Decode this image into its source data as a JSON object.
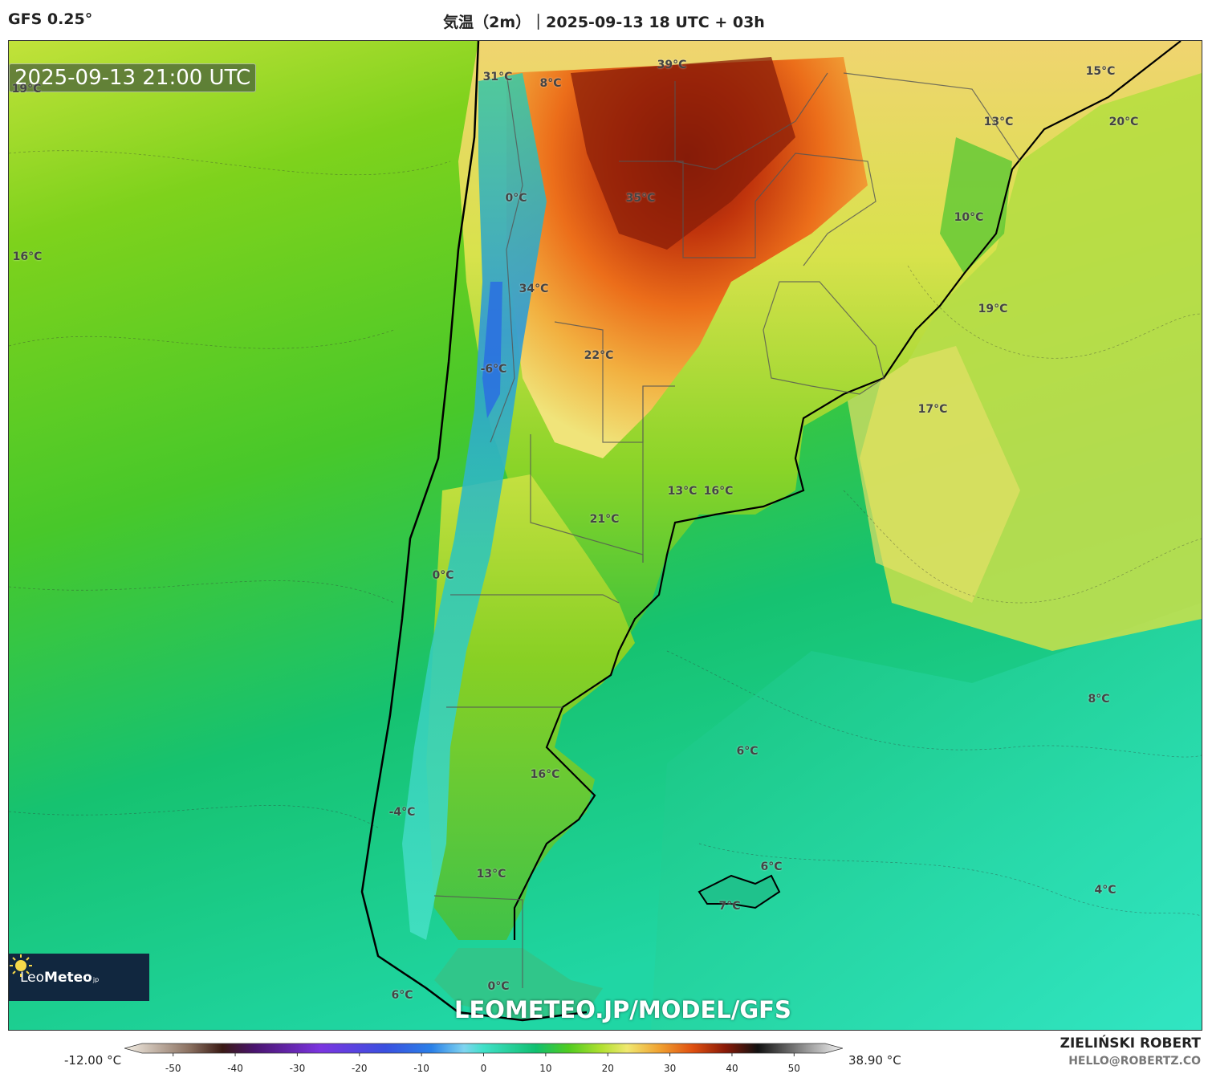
{
  "header": {
    "model": "GFS 0.25°",
    "title": "気温（2m）｜2025-09-13 18 UTC + 03h"
  },
  "map": {
    "timestamp": "2025-09-13 21:00 UTC",
    "watermark_url": "LEOMETEO.JP/MODEL/GFS",
    "logo": {
      "leo": "Leo",
      "meteo": "Meteo",
      "suffix": "jp",
      "icon": "sun-icon"
    },
    "temp_labels": [
      {
        "text": "39°C"
      },
      {
        "text": "31°C"
      },
      {
        "text": "8°C"
      },
      {
        "text": "19°C"
      },
      {
        "text": "15°C"
      },
      {
        "text": "20°C"
      },
      {
        "text": "13°C"
      },
      {
        "text": "0°C"
      },
      {
        "text": "35°C"
      },
      {
        "text": "10°C"
      },
      {
        "text": "16°C"
      },
      {
        "text": "34°C"
      },
      {
        "text": "19°C"
      },
      {
        "text": "22°C"
      },
      {
        "text": "-6°C"
      },
      {
        "text": "17°C"
      },
      {
        "text": "13°C"
      },
      {
        "text": "16°C"
      },
      {
        "text": "21°C"
      },
      {
        "text": "0°C"
      },
      {
        "text": "8°C"
      },
      {
        "text": "6°C"
      },
      {
        "text": "16°C"
      },
      {
        "text": "-4°C"
      },
      {
        "text": "13°C"
      },
      {
        "text": "6°C"
      },
      {
        "text": "7°C"
      },
      {
        "text": "4°C"
      },
      {
        "text": "0°C"
      },
      {
        "text": "6°C"
      }
    ]
  },
  "colorbar": {
    "min_label": "-12.00 °C",
    "max_label": "38.90 °C",
    "ticks": [
      "-50",
      "-40",
      "-30",
      "-20",
      "-10",
      "0",
      "10",
      "20",
      "30",
      "40",
      "50"
    ],
    "tick_values": [
      -50,
      -40,
      -30,
      -20,
      -10,
      0,
      10,
      20,
      30,
      40,
      50
    ],
    "range": [
      -55,
      55
    ],
    "stops": [
      {
        "v": -55,
        "c": "#f5f0e6"
      },
      {
        "v": -45,
        "c": "#8a7060"
      },
      {
        "v": -40,
        "c": "#3a1a14"
      },
      {
        "v": -35,
        "c": "#4a1470"
      },
      {
        "v": -25,
        "c": "#7b35e0"
      },
      {
        "v": -15,
        "c": "#3a50e0"
      },
      {
        "v": -8,
        "c": "#2a80e8"
      },
      {
        "v": -3,
        "c": "#7fd4f0"
      },
      {
        "v": 0,
        "c": "#40e0c8"
      },
      {
        "v": 8,
        "c": "#10c070"
      },
      {
        "v": 13,
        "c": "#50cc20"
      },
      {
        "v": 18,
        "c": "#b0e030"
      },
      {
        "v": 22,
        "c": "#f0e870"
      },
      {
        "v": 27,
        "c": "#f0a030"
      },
      {
        "v": 32,
        "c": "#e05010"
      },
      {
        "v": 37,
        "c": "#8a1a08"
      },
      {
        "v": 42,
        "c": "#111111"
      },
      {
        "v": 50,
        "c": "#a0a0a0"
      },
      {
        "v": 55,
        "c": "#f4f4f4"
      }
    ]
  },
  "credits": {
    "author": "ZIELIŃSKI ROBERT",
    "email": "HELLO@ROBERTZ.CO"
  },
  "colors": {
    "ocean_warm": "#9ad41a",
    "ocean_mid": "#4cc82a",
    "ocean_cool": "#16c878",
    "ocean_cold": "#2ae6c4",
    "land_hot": "#c0340c",
    "land_warm": "#f08a24",
    "land_mild": "#f0e07a",
    "andes_cold": "#3ab6d4"
  }
}
